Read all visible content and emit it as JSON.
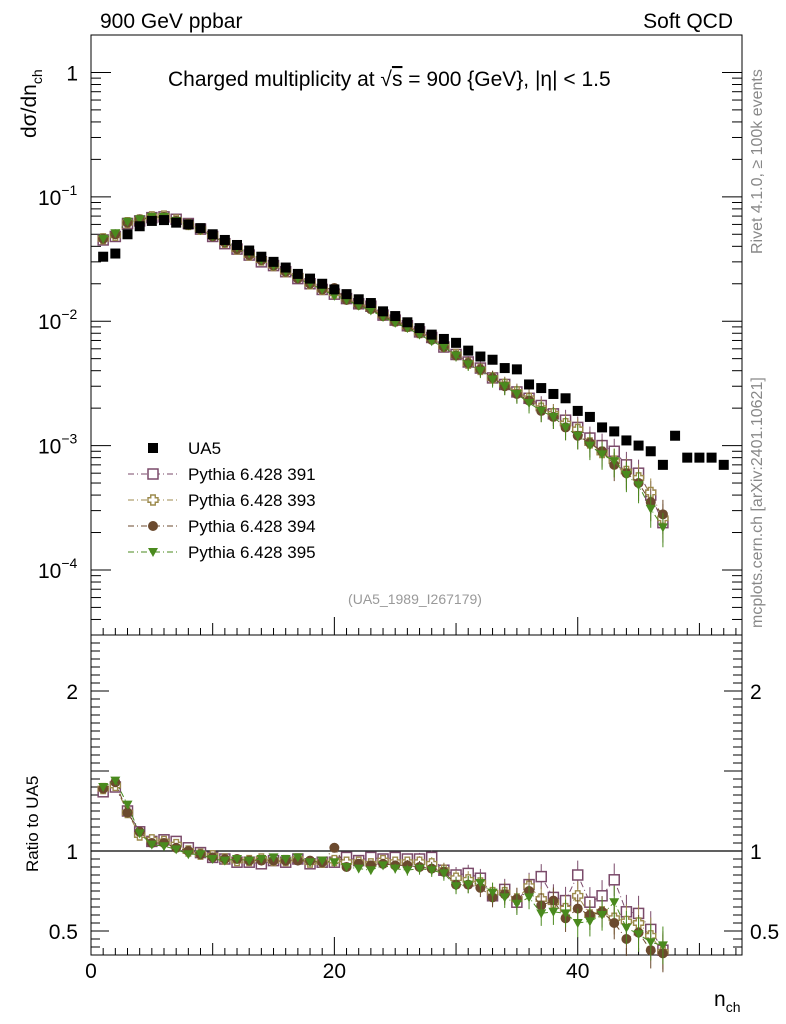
{
  "header": {
    "left": "900 GeV ppbar",
    "right": "Soft QCD"
  },
  "side_text": {
    "rivet": "Rivet 4.1.0, ≥ 100k events",
    "mcplots": "mcplots.cern.ch [arXiv:2401.10621]"
  },
  "analysis_id": "(UA5_1989_I267179)",
  "chart_data": {
    "type": "scatter",
    "title_prefix": "Charged multiplicity at ",
    "title_sqrt": "s",
    "title_suffix": " = 900 {GeV}, |η| < 1.5",
    "xlabel": "n",
    "xlabel_sub": "ch",
    "ylabel": "dσ/dn",
    "ylabel_sub": "ch",
    "ratio_ylabel": "Ratio to UA5",
    "xlim": [
      0,
      53.5
    ],
    "ylim": [
      3e-05,
      2
    ],
    "ratio_ylim": [
      0.35,
      2.35
    ],
    "x_ticks": [
      0,
      20,
      40
    ],
    "y_ticks": [
      {
        "value": 1,
        "mantissa": "1",
        "exp": ""
      },
      {
        "value": 0.1,
        "mantissa": "10",
        "exp": "−1"
      },
      {
        "value": 0.01,
        "mantissa": "10",
        "exp": "−2"
      },
      {
        "value": 0.001,
        "mantissa": "10",
        "exp": "−3"
      },
      {
        "value": 0.0001,
        "mantissa": "10",
        "exp": "−4"
      }
    ],
    "ratio_ticks": [
      {
        "value": 2,
        "label": "2"
      },
      {
        "value": 1,
        "label": "1"
      },
      {
        "value": 0.5,
        "label": "0.5"
      }
    ],
    "legend_position": "middle-left",
    "series": [
      {
        "name": "UA5",
        "color": "#000000",
        "marker": "filled-square",
        "x": [
          1,
          2,
          3,
          4,
          5,
          6,
          7,
          8,
          9,
          10,
          11,
          12,
          13,
          14,
          15,
          16,
          17,
          18,
          19,
          20,
          21,
          22,
          23,
          24,
          25,
          26,
          27,
          28,
          29,
          30,
          31,
          32,
          33,
          34,
          35,
          36,
          37,
          38,
          39,
          40,
          41,
          42,
          43,
          44,
          45,
          46,
          47,
          48,
          49,
          50,
          51,
          52
        ],
        "y": [
          0.033,
          0.035,
          0.05,
          0.058,
          0.064,
          0.065,
          0.062,
          0.06,
          0.056,
          0.05,
          0.045,
          0.041,
          0.037,
          0.033,
          0.03,
          0.027,
          0.024,
          0.022,
          0.02,
          0.018,
          0.0165,
          0.015,
          0.014,
          0.012,
          0.011,
          0.0098,
          0.0088,
          0.0078,
          0.0072,
          0.0067,
          0.0058,
          0.0052,
          0.0049,
          0.0042,
          0.0041,
          0.0031,
          0.0029,
          0.0026,
          0.0024,
          0.0019,
          0.0017,
          0.0014,
          0.0013,
          0.0011,
          0.001,
          0.0009,
          0.0007,
          0.0012,
          0.0008,
          0.0008,
          0.0008,
          0.0007
        ]
      },
      {
        "name": "Pythia 6.428 391",
        "color": "#7a4a6a",
        "marker": "open-square",
        "x": [
          1,
          2,
          3,
          4,
          5,
          6,
          7,
          8,
          9,
          10,
          11,
          12,
          13,
          14,
          15,
          16,
          17,
          18,
          19,
          20,
          21,
          22,
          23,
          24,
          25,
          26,
          27,
          28,
          29,
          30,
          31,
          32,
          33,
          34,
          35,
          36,
          37,
          38,
          39,
          40,
          41,
          42,
          43,
          44,
          45,
          46,
          47
        ],
        "y": [
          0.045,
          0.048,
          0.061,
          0.064,
          0.068,
          0.069,
          0.066,
          0.061,
          0.055,
          0.048,
          0.042,
          0.038,
          0.034,
          0.03,
          0.028,
          0.025,
          0.022,
          0.02,
          0.018,
          0.0165,
          0.0152,
          0.0138,
          0.0132,
          0.0112,
          0.0102,
          0.0092,
          0.0082,
          0.0074,
          0.0062,
          0.0054,
          0.0047,
          0.0042,
          0.0035,
          0.0031,
          0.0027,
          0.0024,
          0.0021,
          0.0018,
          0.0016,
          0.0014,
          0.00115,
          0.001,
          0.0009,
          0.0007,
          0.0006,
          0.0004,
          0.00024
        ]
      },
      {
        "name": "Pythia 6.428 393",
        "color": "#9c8a4c",
        "marker": "open-cross",
        "x": [
          1,
          2,
          3,
          4,
          5,
          6,
          7,
          8,
          9,
          10,
          11,
          12,
          13,
          14,
          15,
          16,
          17,
          18,
          19,
          20,
          21,
          22,
          23,
          24,
          25,
          26,
          27,
          28,
          29,
          30,
          31,
          32,
          33,
          34,
          35,
          36,
          37,
          38,
          39,
          40,
          41,
          42,
          43,
          44,
          45,
          46,
          47
        ],
        "y": [
          0.046,
          0.049,
          0.062,
          0.065,
          0.069,
          0.07,
          0.065,
          0.06,
          0.055,
          0.049,
          0.043,
          0.038,
          0.034,
          0.031,
          0.028,
          0.025,
          0.023,
          0.02,
          0.018,
          0.0168,
          0.0152,
          0.0138,
          0.0128,
          0.0112,
          0.0101,
          0.0091,
          0.0081,
          0.0073,
          0.0063,
          0.0054,
          0.0046,
          0.0041,
          0.0035,
          0.0031,
          0.0027,
          0.0024,
          0.002,
          0.0018,
          0.0015,
          0.00135,
          0.00105,
          0.00088,
          0.00075,
          0.00062,
          0.00055,
          0.00042,
          0.00026
        ]
      },
      {
        "name": "Pythia 6.428 394",
        "color": "#6b4a2e",
        "marker": "filled-circle",
        "x": [
          1,
          2,
          3,
          4,
          5,
          6,
          7,
          8,
          9,
          10,
          11,
          12,
          13,
          14,
          15,
          16,
          17,
          18,
          19,
          20,
          21,
          22,
          23,
          24,
          25,
          26,
          27,
          28,
          29,
          30,
          31,
          32,
          33,
          34,
          35,
          36,
          37,
          38,
          39,
          40,
          41,
          42,
          43,
          44,
          45,
          46,
          47
        ],
        "y": [
          0.046,
          0.05,
          0.062,
          0.066,
          0.068,
          0.069,
          0.064,
          0.06,
          0.055,
          0.048,
          0.043,
          0.038,
          0.034,
          0.031,
          0.028,
          0.025,
          0.022,
          0.02,
          0.018,
          0.0185,
          0.0148,
          0.0135,
          0.0125,
          0.011,
          0.0099,
          0.009,
          0.008,
          0.0071,
          0.0062,
          0.0053,
          0.0046,
          0.0041,
          0.0035,
          0.003,
          0.0026,
          0.0023,
          0.0019,
          0.0017,
          0.0014,
          0.0012,
          0.00105,
          0.0009,
          0.0007,
          0.0006,
          0.0005,
          0.00035,
          0.00028
        ]
      },
      {
        "name": "Pythia 6.428 395",
        "color": "#4a8a1e",
        "marker": "filled-triangle-down",
        "x": [
          1,
          2,
          3,
          4,
          5,
          6,
          7,
          8,
          9,
          10,
          11,
          12,
          13,
          14,
          15,
          16,
          17,
          18,
          19,
          20,
          21,
          22,
          23,
          24,
          25,
          26,
          27,
          28,
          29,
          30,
          31,
          32,
          33,
          34,
          35,
          36,
          37,
          38,
          39,
          40,
          41,
          42,
          43,
          44,
          45,
          46,
          47
        ],
        "y": [
          0.046,
          0.051,
          0.063,
          0.066,
          0.069,
          0.069,
          0.064,
          0.059,
          0.054,
          0.048,
          0.043,
          0.039,
          0.035,
          0.031,
          0.028,
          0.025,
          0.022,
          0.02,
          0.018,
          0.016,
          0.0148,
          0.0133,
          0.0122,
          0.0108,
          0.0097,
          0.0088,
          0.0078,
          0.0069,
          0.0062,
          0.0053,
          0.0045,
          0.004,
          0.0034,
          0.003,
          0.0026,
          0.0022,
          0.0019,
          0.0017,
          0.0014,
          0.0012,
          0.001,
          0.00085,
          0.00075,
          0.00058,
          0.00048,
          0.00031,
          0.00022
        ]
      }
    ],
    "ratios": [
      {
        "name": "Pythia 6.428 391",
        "x": [
          1,
          2,
          3,
          4,
          5,
          6,
          7,
          8,
          9,
          10,
          11,
          12,
          13,
          14,
          15,
          16,
          17,
          18,
          19,
          20,
          21,
          22,
          23,
          24,
          25,
          26,
          27,
          28,
          29,
          30,
          31,
          32,
          33,
          34,
          35,
          36,
          37,
          38,
          39,
          40,
          41,
          42,
          43,
          44,
          45,
          46,
          47
        ],
        "y": [
          1.37,
          1.4,
          1.25,
          1.12,
          1.06,
          1.07,
          1.06,
          1.02,
          0.99,
          0.96,
          0.95,
          0.93,
          0.93,
          0.92,
          0.94,
          0.93,
          0.95,
          0.92,
          0.93,
          0.93,
          0.96,
          0.94,
          0.96,
          0.95,
          0.96,
          0.95,
          0.95,
          0.96,
          0.88,
          0.85,
          0.86,
          0.83,
          0.72,
          0.76,
          0.68,
          0.79,
          0.84,
          0.71,
          0.69,
          0.85,
          0.68,
          0.72,
          0.82,
          0.62,
          0.61,
          0.51,
          0.38
        ]
      },
      {
        "name": "Pythia 6.428 393",
        "x": [
          1,
          2,
          3,
          4,
          5,
          6,
          7,
          8,
          9,
          10,
          11,
          12,
          13,
          14,
          15,
          16,
          17,
          18,
          19,
          20,
          21,
          22,
          23,
          24,
          25,
          26,
          27,
          28,
          29,
          30,
          31,
          32,
          33,
          34,
          35,
          36,
          37,
          38,
          39,
          40,
          41,
          42,
          43,
          44,
          45,
          46,
          47
        ],
        "y": [
          1.39,
          1.41,
          1.24,
          1.1,
          1.07,
          1.06,
          1.04,
          1.0,
          0.98,
          0.97,
          0.95,
          0.94,
          0.94,
          0.95,
          0.94,
          0.94,
          0.95,
          0.93,
          0.93,
          0.94,
          0.93,
          0.93,
          0.92,
          0.94,
          0.93,
          0.93,
          0.93,
          0.92,
          0.88,
          0.83,
          0.82,
          0.8,
          0.74,
          0.74,
          0.7,
          0.78,
          0.7,
          0.68,
          0.64,
          0.72,
          0.6,
          0.62,
          0.58,
          0.56,
          0.55,
          0.47,
          0.37
        ]
      },
      {
        "name": "Pythia 6.428 394",
        "x": [
          1,
          2,
          3,
          4,
          5,
          6,
          7,
          8,
          9,
          10,
          11,
          12,
          13,
          14,
          15,
          16,
          17,
          18,
          19,
          20,
          21,
          22,
          23,
          24,
          25,
          26,
          27,
          28,
          29,
          30,
          31,
          32,
          33,
          34,
          35,
          36,
          37,
          38,
          39,
          40,
          41,
          42,
          43,
          44,
          45,
          46,
          47
        ],
        "y": [
          1.39,
          1.43,
          1.24,
          1.12,
          1.05,
          1.05,
          1.02,
          1.0,
          0.98,
          0.96,
          0.95,
          0.95,
          0.94,
          0.94,
          0.94,
          0.94,
          0.94,
          0.94,
          0.93,
          1.02,
          0.9,
          0.92,
          0.91,
          0.92,
          0.91,
          0.91,
          0.9,
          0.89,
          0.87,
          0.79,
          0.79,
          0.77,
          0.71,
          0.73,
          0.7,
          0.75,
          0.66,
          0.69,
          0.58,
          0.64,
          0.6,
          0.62,
          0.55,
          0.45,
          0.49,
          0.38,
          0.36
        ]
      },
      {
        "name": "Pythia 6.428 395",
        "x": [
          1,
          2,
          3,
          4,
          5,
          6,
          7,
          8,
          9,
          10,
          11,
          12,
          13,
          14,
          15,
          16,
          17,
          18,
          19,
          20,
          21,
          22,
          23,
          24,
          25,
          26,
          27,
          28,
          29,
          30,
          31,
          32,
          33,
          34,
          35,
          36,
          37,
          38,
          39,
          40,
          41,
          42,
          43,
          44,
          45,
          46,
          47
        ],
        "y": [
          1.4,
          1.44,
          1.29,
          1.11,
          1.04,
          1.03,
          1.01,
          0.98,
          0.98,
          0.95,
          0.94,
          0.95,
          0.94,
          0.95,
          0.96,
          0.95,
          0.96,
          0.93,
          0.94,
          0.93,
          0.9,
          0.89,
          0.88,
          0.91,
          0.89,
          0.88,
          0.89,
          0.88,
          0.86,
          0.78,
          0.79,
          0.8,
          0.74,
          0.71,
          0.67,
          0.71,
          0.61,
          0.62,
          0.61,
          0.55,
          0.56,
          0.6,
          0.68,
          0.52,
          0.48,
          0.43,
          0.41
        ]
      }
    ]
  }
}
